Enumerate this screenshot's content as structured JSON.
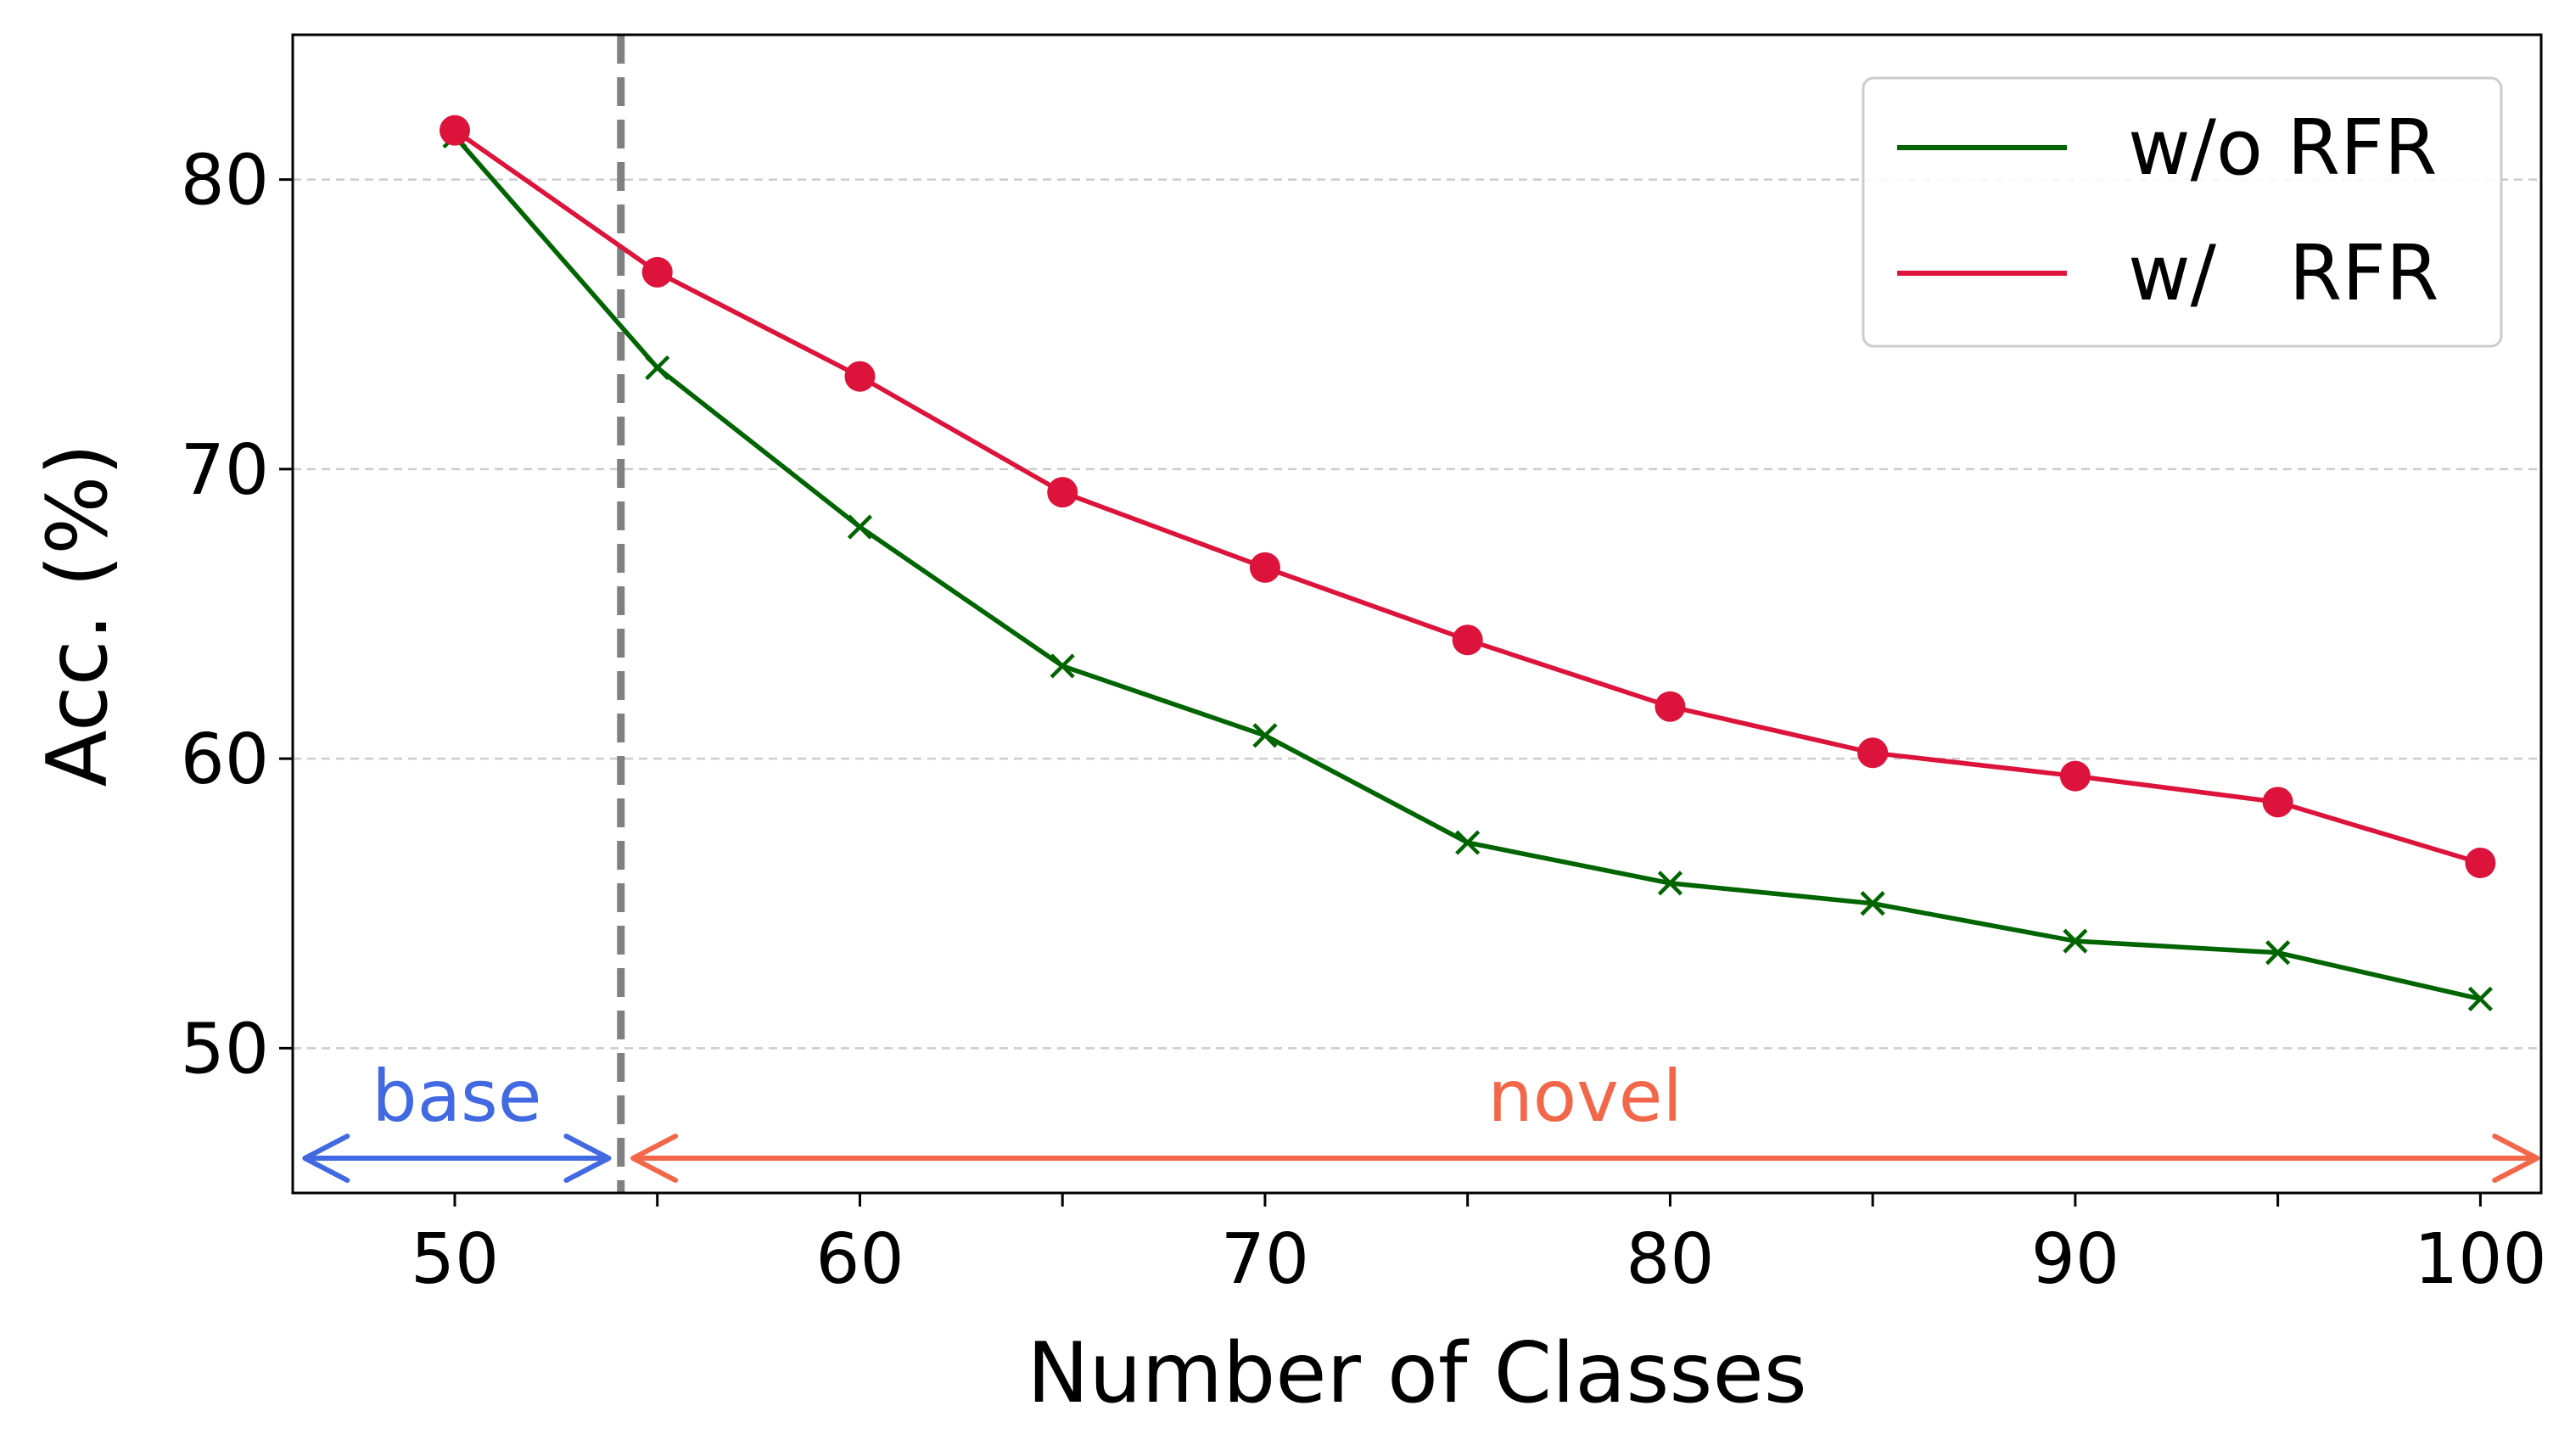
{
  "chart_data": {
    "type": "line",
    "xlabel": "Number of Classes",
    "ylabel": "Acc. (%)",
    "xlim": [
      46,
      101.5
    ],
    "ylim": [
      45,
      85
    ],
    "xticks_major": [
      50,
      60,
      70,
      80,
      90,
      100
    ],
    "xticks_minor": [
      55,
      65,
      75,
      85,
      95
    ],
    "yticks": [
      50,
      60,
      70,
      80
    ],
    "grid": "horizontal dashed",
    "legend_position": "top-right",
    "series": [
      {
        "name": "w/o RFR",
        "color": "#006400",
        "marker": "x",
        "x": [
          50,
          55,
          60,
          65,
          70,
          75,
          80,
          85,
          90,
          95,
          100
        ],
        "values": [
          81.5,
          73.5,
          68.0,
          63.2,
          60.8,
          57.1,
          55.7,
          55.0,
          53.7,
          53.3,
          51.7
        ]
      },
      {
        "name": "w/   RFR",
        "color": "#DC143C",
        "marker": "circle",
        "x": [
          50,
          55,
          60,
          65,
          70,
          75,
          80,
          85,
          90,
          95,
          100
        ],
        "values": [
          81.7,
          76.8,
          73.2,
          69.2,
          66.6,
          64.1,
          61.8,
          60.2,
          59.4,
          58.5,
          56.4
        ]
      }
    ],
    "annotations": {
      "divider_x": 54.1,
      "divider_color": "#808080",
      "base": {
        "label": "base",
        "color": "#4169E1",
        "from": 46.3,
        "to": 53.8,
        "y": 46.2
      },
      "novel": {
        "label": "novel",
        "color": "#F2674A",
        "from": 54.4,
        "to": 101.4,
        "y": 46.2
      }
    }
  }
}
